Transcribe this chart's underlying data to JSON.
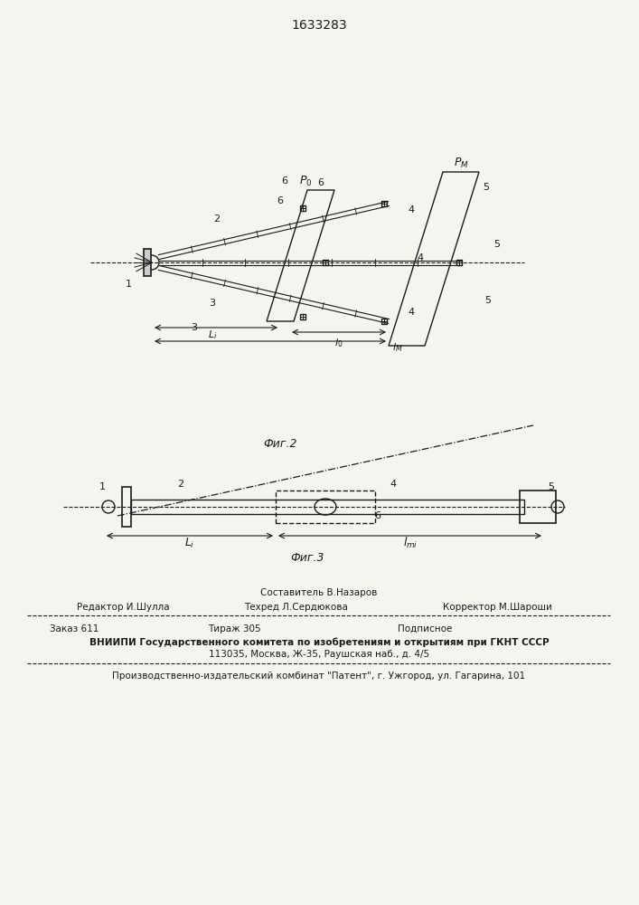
{
  "title": "1633283",
  "fig2_caption": "Фиг.2",
  "fig3_caption": "Фиг.3",
  "footer_line1_center": "Составитель В.Назаров",
  "footer_line2_left": "Редактор И.Шулла",
  "footer_line2_center": "Техред Л.Сердюкова",
  "footer_line2_right": "Корректор М.Шароши",
  "footer_line3_left": "Заказ 611",
  "footer_line3_center": "Тираж 305",
  "footer_line3_right": "Подписное",
  "footer_line4": "ВНИИПИ Государственного комитета по изобретениям и открытиям при ГКНТ СССР",
  "footer_line5": "113035, Москва, Ж-35, Раушская наб., д. 4/5",
  "footer_line6": "Производственно-издательский комбинат \"Патент\", г. Ужгород, ул. Гагарина, 101",
  "bg_color": "#f5f5f0",
  "line_color": "#1a1a1a"
}
